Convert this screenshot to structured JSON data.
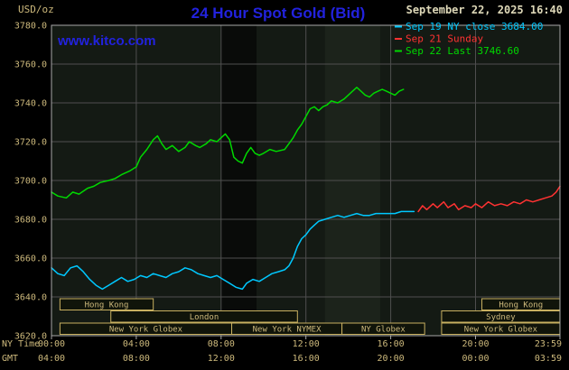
{
  "header": {
    "unit_label": "USD/oz",
    "title": "24 Hour Spot Gold (Bid)",
    "datetime": "September 22, 2025 16:40",
    "watermark": "www.kitco.com"
  },
  "legend": {
    "items": [
      {
        "label": "Sep 19 NY close 3684.00",
        "color": "#00c8ff"
      },
      {
        "label": "Sep 21 Sunday",
        "color": "#ff3232"
      },
      {
        "label": "Sep 22 Last 3746.60",
        "color": "#00d800"
      }
    ]
  },
  "axis": {
    "x_ny_label": "NY Time",
    "x_gmt_label": "GMT",
    "y_tick_labels": [
      "3780.0",
      "3760.0",
      "3740.0",
      "3720.0",
      "3700.0",
      "3680.0",
      "3660.0",
      "3640.0",
      "3620.0"
    ],
    "x_ny_tick_labels": [
      "00:00",
      "04:00",
      "08:00",
      "12:00",
      "16:00",
      "20:00",
      "23:59"
    ],
    "x_gmt_tick_labels": [
      "04:00",
      "08:00",
      "12:00",
      "16:00",
      "20:00",
      "00:00",
      "03:59"
    ]
  },
  "sessions": [
    {
      "row": 0,
      "start_hour": 0.4,
      "end_hour": 4.8,
      "label": "Hong Kong"
    },
    {
      "row": 0,
      "start_hour": 20.3,
      "end_hour": 23.98,
      "label": "Hong Kong"
    },
    {
      "row": 1,
      "start_hour": 2.8,
      "end_hour": 11.6,
      "label": "London"
    },
    {
      "row": 1,
      "start_hour": 18.4,
      "end_hour": 23.98,
      "label": "Sydney"
    },
    {
      "row": 2,
      "start_hour": 0.4,
      "end_hour": 8.5,
      "label": "New York Globex"
    },
    {
      "row": 2,
      "start_hour": 8.5,
      "end_hour": 13.7,
      "label": "New York NYMEX"
    },
    {
      "row": 2,
      "start_hour": 13.7,
      "end_hour": 17.6,
      "label": "NY Globex"
    },
    {
      "row": 2,
      "start_hour": 18.4,
      "end_hour": 23.98,
      "label": "New York Globex"
    }
  ],
  "colors": {
    "background": "#000000",
    "plot_background": "#141a14",
    "grid": "#4f4f4f",
    "frame": "#a8a8a8",
    "axis_text": "#cdb97c",
    "datetime_text": "#ded8b8",
    "accent_blue": "#2222dd",
    "session_border": "#c8b060",
    "session_fill": "#10140a",
    "session_text": "#cdb97c",
    "band_dark": "rgba(0,0,0,0.55)",
    "band_light": "rgba(190,210,170,0.05)"
  },
  "chart_data": {
    "type": "line",
    "title": "24 Hour Spot Gold (Bid)",
    "xlabel": "NY Time (hours)",
    "ylabel": "USD/oz",
    "ylim": [
      3620,
      3780
    ],
    "x_range_hours": [
      0,
      23.983
    ],
    "y_grid_step": 20,
    "x_tick_hours": [
      0,
      4,
      8,
      12,
      16,
      20,
      23.983
    ],
    "grid": true,
    "legend_position": "top-right",
    "prev_close": 3684.0,
    "last_price": 3746.6,
    "bands": [
      {
        "start_hour": 8.0,
        "end_hour": 9.67,
        "shade": "dark"
      },
      {
        "start_hour": 12.9,
        "end_hour": 15.5,
        "shade": "light"
      }
    ],
    "series": [
      {
        "name": "Sep 19 NY close 3684.00",
        "color": "#00c8ff",
        "points": [
          [
            0,
            3655
          ],
          [
            0.3,
            3652
          ],
          [
            0.6,
            3651
          ],
          [
            0.9,
            3655
          ],
          [
            1.2,
            3656
          ],
          [
            1.5,
            3653
          ],
          [
            1.8,
            3649
          ],
          [
            2.1,
            3646
          ],
          [
            2.4,
            3644
          ],
          [
            2.7,
            3646
          ],
          [
            3,
            3648
          ],
          [
            3.3,
            3650
          ],
          [
            3.6,
            3648
          ],
          [
            3.9,
            3649
          ],
          [
            4.2,
            3651
          ],
          [
            4.5,
            3650
          ],
          [
            4.8,
            3652
          ],
          [
            5.1,
            3651
          ],
          [
            5.4,
            3650
          ],
          [
            5.7,
            3652
          ],
          [
            6,
            3653
          ],
          [
            6.3,
            3655
          ],
          [
            6.6,
            3654
          ],
          [
            6.9,
            3652
          ],
          [
            7.2,
            3651
          ],
          [
            7.5,
            3650
          ],
          [
            7.8,
            3651
          ],
          [
            8.1,
            3649
          ],
          [
            8.4,
            3647
          ],
          [
            8.7,
            3645
          ],
          [
            9,
            3644
          ],
          [
            9.2,
            3647
          ],
          [
            9.5,
            3649
          ],
          [
            9.8,
            3648
          ],
          [
            10.1,
            3650
          ],
          [
            10.4,
            3652
          ],
          [
            10.7,
            3653
          ],
          [
            11,
            3654
          ],
          [
            11.2,
            3656
          ],
          [
            11.4,
            3660
          ],
          [
            11.6,
            3666
          ],
          [
            11.8,
            3670
          ],
          [
            12,
            3672
          ],
          [
            12.2,
            3675
          ],
          [
            12.4,
            3677
          ],
          [
            12.6,
            3679
          ],
          [
            12.9,
            3680
          ],
          [
            13.2,
            3681
          ],
          [
            13.5,
            3682
          ],
          [
            13.8,
            3681
          ],
          [
            14.1,
            3682
          ],
          [
            14.4,
            3683
          ],
          [
            14.7,
            3682
          ],
          [
            15,
            3682
          ],
          [
            15.3,
            3683
          ],
          [
            15.6,
            3683
          ],
          [
            15.9,
            3683
          ],
          [
            16.2,
            3683
          ],
          [
            16.5,
            3684
          ],
          [
            16.8,
            3684
          ],
          [
            17.1,
            3684
          ]
        ]
      },
      {
        "name": "Sep 21 Sunday",
        "color": "#ff3232",
        "points": [
          [
            17.3,
            3684
          ],
          [
            17.5,
            3687
          ],
          [
            17.7,
            3685
          ],
          [
            18,
            3688
          ],
          [
            18.2,
            3686
          ],
          [
            18.5,
            3689
          ],
          [
            18.7,
            3686
          ],
          [
            19,
            3688
          ],
          [
            19.2,
            3685
          ],
          [
            19.5,
            3687
          ],
          [
            19.8,
            3686
          ],
          [
            20,
            3688
          ],
          [
            20.3,
            3686
          ],
          [
            20.6,
            3689
          ],
          [
            20.9,
            3687
          ],
          [
            21.2,
            3688
          ],
          [
            21.5,
            3687
          ],
          [
            21.8,
            3689
          ],
          [
            22.1,
            3688
          ],
          [
            22.4,
            3690
          ],
          [
            22.7,
            3689
          ],
          [
            23,
            3690
          ],
          [
            23.3,
            3691
          ],
          [
            23.6,
            3692
          ],
          [
            23.8,
            3694
          ],
          [
            23.983,
            3697
          ]
        ]
      },
      {
        "name": "Sep 22 Last 3746.60",
        "color": "#00d800",
        "points": [
          [
            0,
            3694
          ],
          [
            0.3,
            3692
          ],
          [
            0.7,
            3691
          ],
          [
            1,
            3694
          ],
          [
            1.3,
            3693
          ],
          [
            1.7,
            3696
          ],
          [
            2,
            3697
          ],
          [
            2.3,
            3699
          ],
          [
            2.7,
            3700
          ],
          [
            3,
            3701
          ],
          [
            3.3,
            3703
          ],
          [
            3.7,
            3705
          ],
          [
            4,
            3707
          ],
          [
            4.2,
            3712
          ],
          [
            4.5,
            3716
          ],
          [
            4.8,
            3721
          ],
          [
            5,
            3723
          ],
          [
            5.2,
            3719
          ],
          [
            5.4,
            3716
          ],
          [
            5.7,
            3718
          ],
          [
            6,
            3715
          ],
          [
            6.3,
            3717
          ],
          [
            6.5,
            3720
          ],
          [
            6.8,
            3718
          ],
          [
            7,
            3717
          ],
          [
            7.3,
            3719
          ],
          [
            7.5,
            3721
          ],
          [
            7.8,
            3720
          ],
          [
            8,
            3722
          ],
          [
            8.2,
            3724
          ],
          [
            8.4,
            3721
          ],
          [
            8.6,
            3712
          ],
          [
            8.8,
            3710
          ],
          [
            9,
            3709
          ],
          [
            9.2,
            3714
          ],
          [
            9.4,
            3717
          ],
          [
            9.6,
            3714
          ],
          [
            9.8,
            3713
          ],
          [
            10,
            3714
          ],
          [
            10.3,
            3716
          ],
          [
            10.6,
            3715
          ],
          [
            11,
            3716
          ],
          [
            11.2,
            3719
          ],
          [
            11.4,
            3722
          ],
          [
            11.6,
            3726
          ],
          [
            11.8,
            3729
          ],
          [
            12,
            3733
          ],
          [
            12.2,
            3737
          ],
          [
            12.4,
            3738
          ],
          [
            12.6,
            3736
          ],
          [
            12.8,
            3738
          ],
          [
            13,
            3739
          ],
          [
            13.2,
            3741
          ],
          [
            13.5,
            3740
          ],
          [
            13.8,
            3742
          ],
          [
            14,
            3744
          ],
          [
            14.2,
            3746
          ],
          [
            14.4,
            3748
          ],
          [
            14.6,
            3746
          ],
          [
            14.8,
            3744
          ],
          [
            15,
            3743
          ],
          [
            15.2,
            3745
          ],
          [
            15.4,
            3746
          ],
          [
            15.6,
            3747
          ],
          [
            15.8,
            3746
          ],
          [
            16,
            3745
          ],
          [
            16.2,
            3744
          ],
          [
            16.4,
            3746
          ],
          [
            16.6,
            3747
          ]
        ]
      }
    ]
  }
}
